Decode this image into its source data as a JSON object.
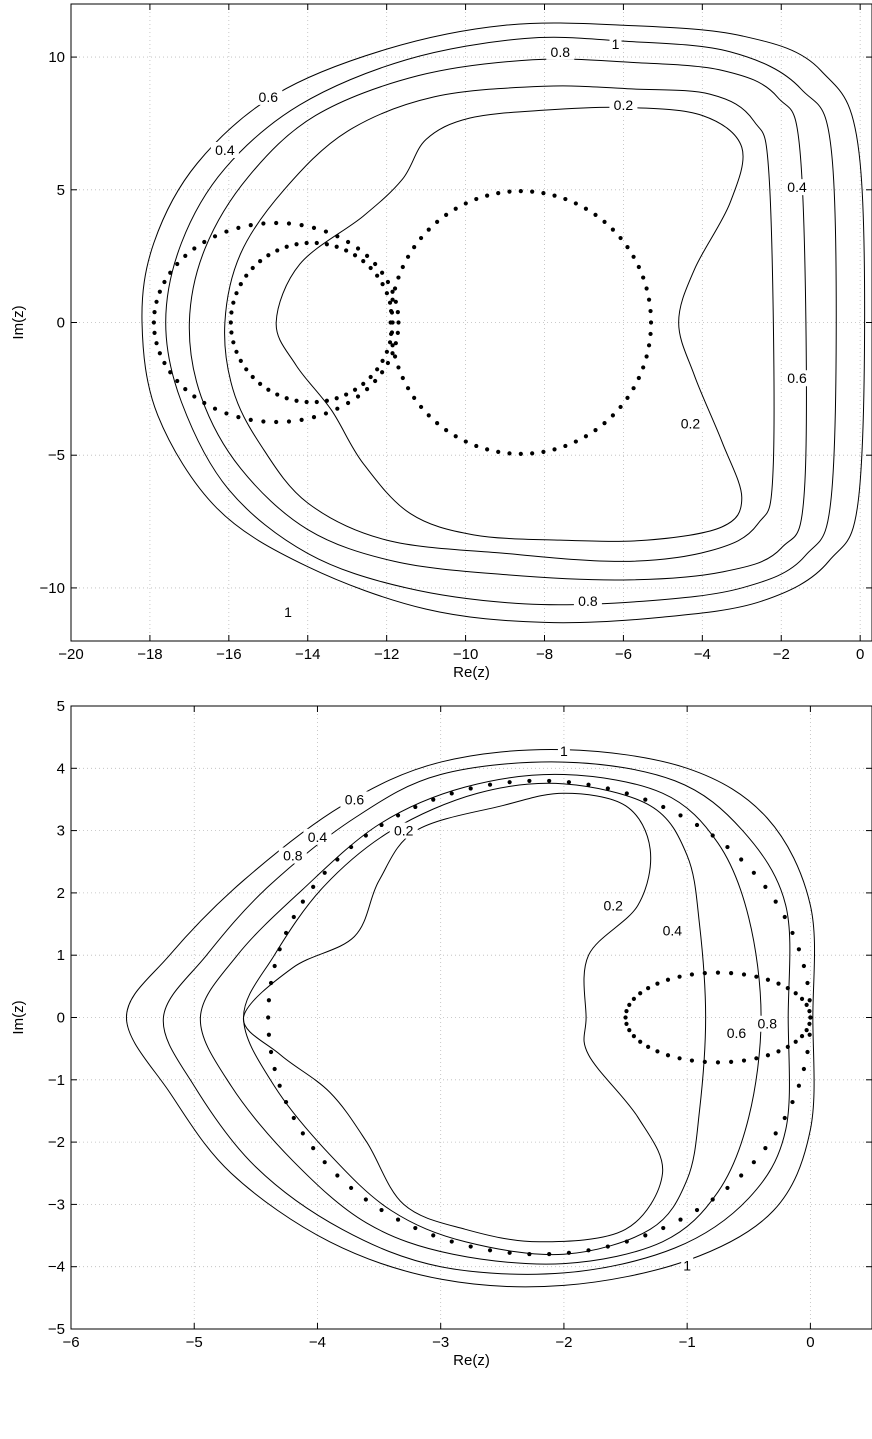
{
  "chart_data": [
    {
      "type": "contour",
      "xlabel": "Re(z)",
      "ylabel": "Im(z)",
      "xlim": [
        -20,
        0.3
      ],
      "ylim": [
        -12,
        12
      ],
      "xticks": [
        -20,
        -18,
        -16,
        -14,
        -12,
        -10,
        -8,
        -6,
        -4,
        -2,
        0
      ],
      "yticks": [
        -10,
        -5,
        0,
        5,
        10
      ],
      "grid": true,
      "contour_levels": [
        "0.2",
        "0.4",
        "0.6",
        "0.8",
        "1"
      ],
      "contours": [
        {
          "level": "1",
          "points": [
            [
              -18.2,
              0
            ],
            [
              -17.9,
              3
            ],
            [
              -16.8,
              6
            ],
            [
              -14.8,
              8.6
            ],
            [
              -12,
              10.3
            ],
            [
              -9,
              11.2
            ],
            [
              -6,
              11.2
            ],
            [
              -3,
              10.8
            ],
            [
              -1,
              9.5
            ],
            [
              0,
              6
            ],
            [
              0,
              -6
            ],
            [
              -0.8,
              -9
            ],
            [
              -2.5,
              -10.5
            ],
            [
              -5,
              -11.1
            ],
            [
              -8,
              -11.3
            ],
            [
              -11,
              -10.8
            ],
            [
              -14,
              -9.2
            ],
            [
              -16.3,
              -7
            ],
            [
              -17.8,
              -3.5
            ]
          ],
          "labels": [
            {
              "text": "1",
              "x": -6.2,
              "y": 10.5
            },
            {
              "text": "1",
              "x": -14.5,
              "y": -10.9
            }
          ]
        },
        {
          "level": "0.8",
          "points": [
            [
              -17.6,
              0
            ],
            [
              -17.2,
              3
            ],
            [
              -16.1,
              5.8
            ],
            [
              -14.2,
              8.2
            ],
            [
              -11.5,
              9.9
            ],
            [
              -8.5,
              10.7
            ],
            [
              -6,
              10.6
            ],
            [
              -3.3,
              10.2
            ],
            [
              -1.5,
              8.8
            ],
            [
              -0.7,
              6
            ],
            [
              -0.7,
              -6
            ],
            [
              -1.4,
              -8.8
            ],
            [
              -3,
              -10
            ],
            [
              -5.5,
              -10.5
            ],
            [
              -8.5,
              -10.6
            ],
            [
              -11.5,
              -10
            ],
            [
              -14,
              -8.7
            ],
            [
              -16,
              -6.3
            ],
            [
              -17.2,
              -3
            ]
          ],
          "labels": [
            {
              "text": "0.8",
              "x": -7.6,
              "y": 10.2
            },
            {
              "text": "0.8",
              "x": -6.9,
              "y": -10.5
            }
          ]
        },
        {
          "level": "0.6",
          "points": [
            [
              -17,
              0
            ],
            [
              -16.6,
              2.8
            ],
            [
              -15.5,
              5.5
            ],
            [
              -13.8,
              7.8
            ],
            [
              -11.2,
              9.3
            ],
            [
              -8.3,
              9.9
            ],
            [
              -5.8,
              9.8
            ],
            [
              -3.5,
              9.5
            ],
            [
              -2.1,
              8.5
            ],
            [
              -1.5,
              6
            ],
            [
              -1.4,
              -6
            ],
            [
              -2,
              -8.5
            ],
            [
              -3.5,
              -9.4
            ],
            [
              -6,
              -9.7
            ],
            [
              -9,
              -9.5
            ],
            [
              -11.8,
              -9
            ],
            [
              -14,
              -7.8
            ],
            [
              -15.7,
              -5.5
            ],
            [
              -16.7,
              -2.8
            ]
          ],
          "labels": [
            {
              "text": "0.6",
              "x": -15.0,
              "y": 8.5
            },
            {
              "text": "0.6",
              "x": -1.6,
              "y": -2.1
            }
          ]
        },
        {
          "level": "0.4",
          "points": [
            [
              -16.1,
              0
            ],
            [
              -15.7,
              2.6
            ],
            [
              -14.6,
              5
            ],
            [
              -13,
              7.2
            ],
            [
              -10.8,
              8.5
            ],
            [
              -8,
              8.9
            ],
            [
              -5.8,
              8.8
            ],
            [
              -3.8,
              8.6
            ],
            [
              -2.7,
              7.6
            ],
            [
              -2.3,
              5.3
            ],
            [
              -2.2,
              -5.3
            ],
            [
              -2.6,
              -7.6
            ],
            [
              -3.8,
              -8.6
            ],
            [
              -6,
              -9
            ],
            [
              -9,
              -8.7
            ],
            [
              -12,
              -8.2
            ],
            [
              -14,
              -6.8
            ],
            [
              -15.2,
              -4.6
            ],
            [
              -15.9,
              -2.5
            ]
          ],
          "labels": [
            {
              "text": "0.4",
              "x": -16.1,
              "y": 6.5
            },
            {
              "text": "0.4",
              "x": -1.6,
              "y": 5.1
            }
          ]
        },
        {
          "level": "0.2",
          "points": [
            [
              -14.8,
              0
            ],
            [
              -14.2,
              2.2
            ],
            [
              -12.6,
              4
            ],
            [
              -11.6,
              5.4
            ],
            [
              -11,
              6.9
            ],
            [
              -9.9,
              7.7
            ],
            [
              -8,
              8
            ],
            [
              -5.9,
              8.1
            ],
            [
              -4,
              7.8
            ],
            [
              -3,
              6.6
            ],
            [
              -3.3,
              4.5
            ],
            [
              -4.2,
              2
            ],
            [
              -4.6,
              0
            ],
            [
              -4.2,
              -2
            ],
            [
              -3.5,
              -4.5
            ],
            [
              -3,
              -6.6
            ],
            [
              -3.5,
              -7.7
            ],
            [
              -5.4,
              -8.2
            ],
            [
              -7.6,
              -8.2
            ],
            [
              -9.8,
              -8
            ],
            [
              -11.4,
              -7.2
            ],
            [
              -12.6,
              -5.3
            ],
            [
              -13.4,
              -3.3
            ],
            [
              -14.3,
              -1.6
            ]
          ],
          "labels": [
            {
              "text": "0.2",
              "x": -6.0,
              "y": 8.2
            },
            {
              "text": "0.2",
              "x": -4.3,
              "y": -3.8
            }
          ]
        }
      ],
      "dotted_curves": [
        {
          "kind": "circle",
          "center": [
            -8.6,
            0
          ],
          "radius_x": 3.3,
          "radius_y": 4.95,
          "count": 72
        },
        {
          "kind": "circle",
          "center": [
            -14.8,
            0
          ],
          "radius_x": 3.1,
          "radius_y": 3.75,
          "count": 60
        },
        {
          "kind": "circle",
          "center": [
            -13.9,
            0
          ],
          "radius_x": 2.05,
          "radius_y": 3.0,
          "count": 50
        }
      ]
    },
    {
      "type": "contour",
      "xlabel": "Re(z)",
      "ylabel": "Im(z)",
      "xlim": [
        -6,
        0.5
      ],
      "ylim": [
        -5,
        5
      ],
      "xticks": [
        -6,
        -5,
        -4,
        -3,
        -2,
        -1,
        0
      ],
      "yticks": [
        -5,
        -4,
        -3,
        -2,
        -1,
        0,
        1,
        2,
        3,
        4,
        5
      ],
      "grid": true,
      "contour_levels": [
        "0.2",
        "0.4",
        "0.6",
        "0.8",
        "1"
      ],
      "contours": [
        {
          "level": "1",
          "points": [
            [
              -5.55,
              0
            ],
            [
              -5.2,
              1
            ],
            [
              -4.6,
              2.2
            ],
            [
              -3.8,
              3.4
            ],
            [
              -3,
              4.1
            ],
            [
              -2,
              4.3
            ],
            [
              -1,
              4
            ],
            [
              -0.35,
              3.2
            ],
            [
              0,
              1.8
            ],
            [
              0.02,
              0
            ],
            [
              0,
              -1.8
            ],
            [
              -0.3,
              -3.1
            ],
            [
              -1,
              -3.9
            ],
            [
              -2,
              -4.3
            ],
            [
              -3,
              -4.2
            ],
            [
              -3.9,
              -3.6
            ],
            [
              -4.7,
              -2.5
            ],
            [
              -5.2,
              -1.2
            ]
          ],
          "labels": [
            {
              "text": "1",
              "x": -2.0,
              "y": 4.28
            },
            {
              "text": "1",
              "x": -1.0,
              "y": -3.98
            }
          ]
        },
        {
          "level": "0.8",
          "points": [
            [
              -5.25,
              0
            ],
            [
              -4.9,
              1
            ],
            [
              -4.4,
              2.1
            ],
            [
              -3.7,
              3.2
            ],
            [
              -3,
              3.9
            ],
            [
              -2,
              4.1
            ],
            [
              -1.1,
              3.8
            ],
            [
              -0.55,
              3
            ],
            [
              -0.2,
              1.8
            ],
            [
              -0.18,
              0
            ],
            [
              -0.2,
              -1.8
            ],
            [
              -0.5,
              -2.9
            ],
            [
              -1.1,
              -3.7
            ],
            [
              -2,
              -4.1
            ],
            [
              -3,
              -4
            ],
            [
              -3.8,
              -3.4
            ],
            [
              -4.5,
              -2.4
            ],
            [
              -5,
              -1.1
            ]
          ],
          "labels": [
            {
              "text": "0.8",
              "x": -4.2,
              "y": 2.6
            },
            {
              "text": "0.8",
              "x": -0.35,
              "y": -0.1
            }
          ]
        },
        {
          "level": "0.6",
          "points": [
            [
              -4.95,
              0
            ],
            [
              -4.65,
              1
            ],
            [
              -4.15,
              2
            ],
            [
              -3.5,
              3.1
            ],
            [
              -2.8,
              3.7
            ],
            [
              -2,
              3.9
            ],
            [
              -1.2,
              3.6
            ],
            [
              -0.75,
              2.8
            ],
            [
              -0.5,
              1.6
            ],
            [
              -0.4,
              0
            ],
            [
              -0.5,
              -1.6
            ],
            [
              -0.75,
              -2.8
            ],
            [
              -1.2,
              -3.6
            ],
            [
              -2,
              -3.95
            ],
            [
              -2.9,
              -3.8
            ],
            [
              -3.6,
              -3.3
            ],
            [
              -4.2,
              -2.3
            ],
            [
              -4.7,
              -1.1
            ]
          ],
          "labels": [
            {
              "text": "0.6",
              "x": -3.7,
              "y": 3.5
            },
            {
              "text": "0.6",
              "x": -0.6,
              "y": -0.25
            }
          ]
        },
        {
          "level": "0.4",
          "points": [
            [
              -4.6,
              0
            ],
            [
              -4.35,
              1
            ],
            [
              -3.95,
              2.1
            ],
            [
              -3.4,
              3
            ],
            [
              -2.7,
              3.6
            ],
            [
              -2,
              3.75
            ],
            [
              -1.3,
              3.4
            ],
            [
              -1,
              2.6
            ],
            [
              -0.9,
              1.5
            ],
            [
              -0.85,
              0
            ],
            [
              -0.9,
              -1.5
            ],
            [
              -1,
              -2.6
            ],
            [
              -1.3,
              -3.4
            ],
            [
              -2,
              -3.8
            ],
            [
              -2.8,
              -3.6
            ],
            [
              -3.4,
              -3.1
            ],
            [
              -3.9,
              -2.2
            ],
            [
              -4.35,
              -1.1
            ]
          ],
          "labels": [
            {
              "text": "0.4",
              "x": -4.0,
              "y": 2.9
            },
            {
              "text": "0.4",
              "x": -1.12,
              "y": 1.4
            }
          ]
        },
        {
          "level": "0.2",
          "points": [
            [
              -4.6,
              0
            ],
            [
              -4.2,
              0.8
            ],
            [
              -3.7,
              1.3
            ],
            [
              -3.5,
              2.2
            ],
            [
              -3.2,
              3
            ],
            [
              -2.5,
              3.4
            ],
            [
              -2,
              3.6
            ],
            [
              -1.5,
              3.4
            ],
            [
              -1.3,
              2.7
            ],
            [
              -1.4,
              1.8
            ],
            [
              -1.8,
              1
            ],
            [
              -1.82,
              0
            ],
            [
              -1.8,
              -0.6
            ],
            [
              -1.4,
              -1.6
            ],
            [
              -1.2,
              -2.5
            ],
            [
              -1.5,
              -3.4
            ],
            [
              -2.2,
              -3.6
            ],
            [
              -2.8,
              -3.4
            ],
            [
              -3.3,
              -3
            ],
            [
              -3.6,
              -2
            ],
            [
              -3.9,
              -1.2
            ],
            [
              -4.3,
              -0.6
            ]
          ],
          "labels": [
            {
              "text": "0.2",
              "x": -3.3,
              "y": 3.0
            },
            {
              "text": "0.2",
              "x": -1.6,
              "y": 1.8
            }
          ]
        }
      ],
      "dotted_curves": [
        {
          "kind": "circle",
          "center": [
            -2.2,
            0
          ],
          "radius_x": 2.2,
          "radius_y": 3.8,
          "count": 86
        },
        {
          "kind": "circle",
          "center": [
            -0.75,
            0
          ],
          "radius_x": 0.75,
          "radius_y": 0.72,
          "count": 44
        }
      ]
    }
  ]
}
